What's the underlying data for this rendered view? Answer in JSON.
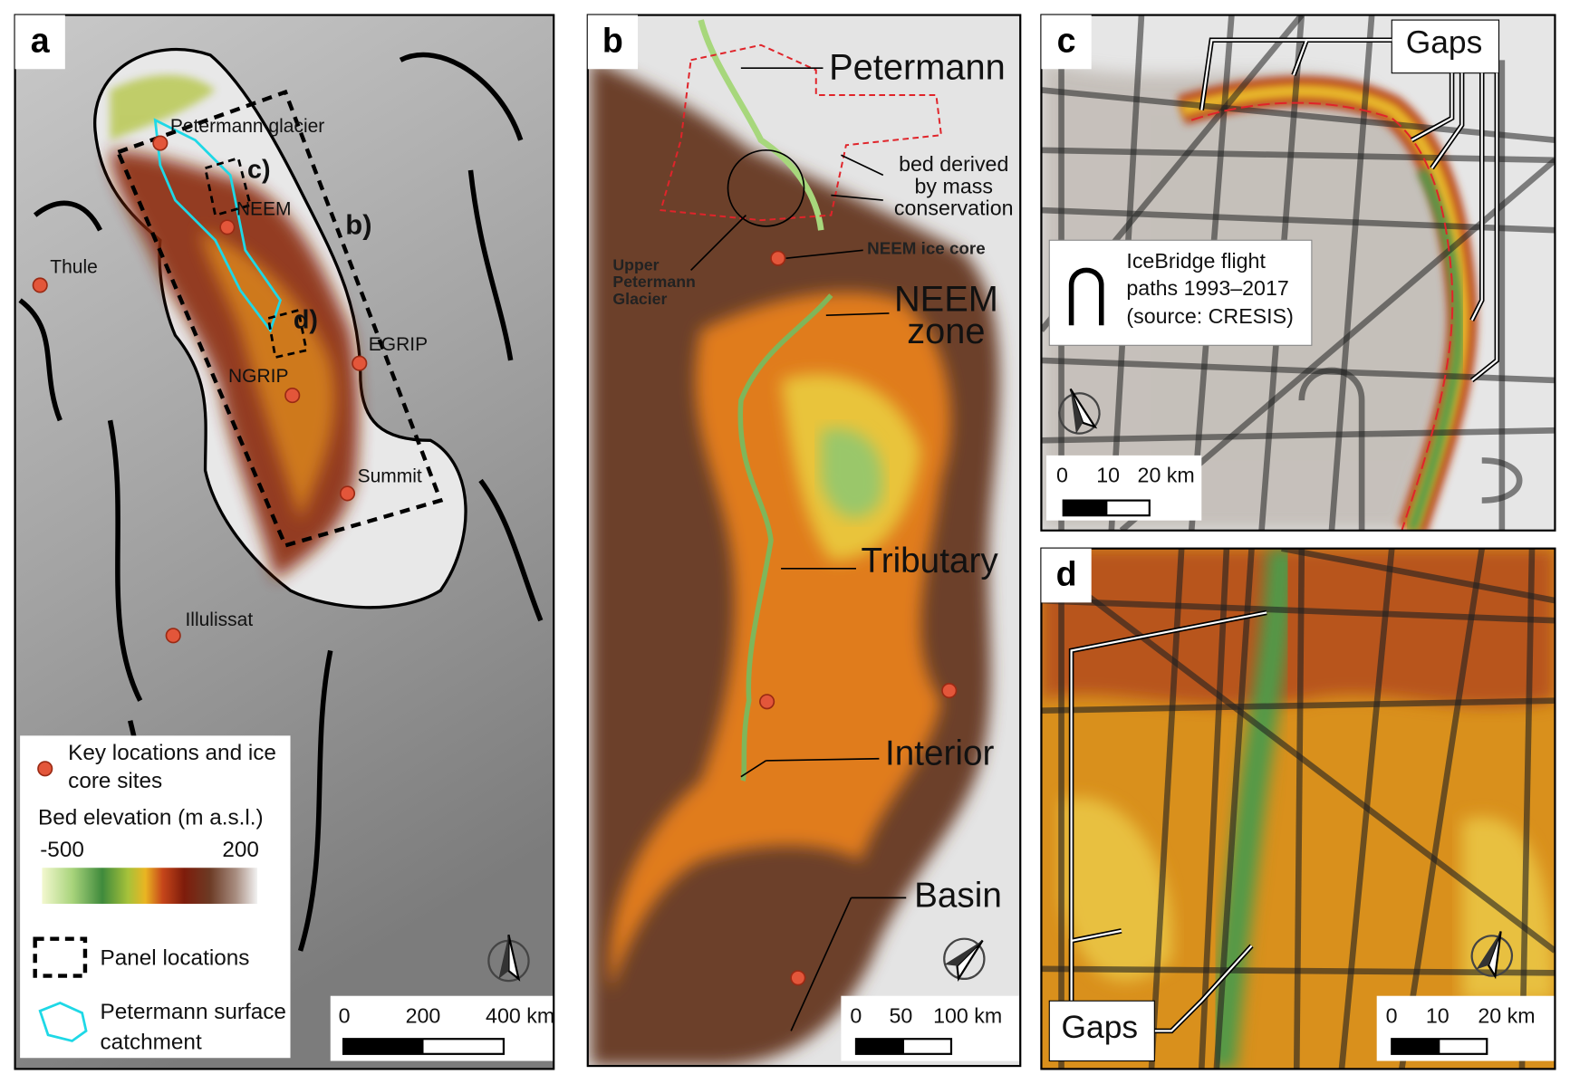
{
  "panels": [
    {
      "letter": "a",
      "labels": [
        "Petermann glacier",
        "c)",
        "NEEM",
        "b)",
        "Thule",
        "d)",
        "EGRIP",
        "NGRIP",
        "Summit",
        "Illulissat"
      ],
      "legend": {
        "locations": "Key locations and ice core sites",
        "bed_title": "Bed elevation (m a.s.l.)",
        "bed_min": -500,
        "bed_max": 200,
        "boxes": "Panel locations",
        "catchment": "Petermann surface catchment"
      },
      "scale": [
        0,
        200,
        "400 km"
      ]
    },
    {
      "letter": "b",
      "labels": [
        "Petermann",
        "bed derived by mass conservation",
        "Upper Petermann Glacier",
        "NEEM ice core",
        "NEEM zone",
        "Tributary",
        "Interior",
        "Basin"
      ],
      "scale": [
        0,
        50,
        "100 km"
      ]
    },
    {
      "letter": "c",
      "labels": [
        "Gaps"
      ],
      "legend": {
        "flights": "IceBridge flight paths 1993–2017 (source: CRESIS)"
      },
      "scale": [
        0,
        10,
        "20 km"
      ]
    },
    {
      "letter": "d",
      "labels": [
        "Gaps"
      ],
      "scale": [
        0,
        10,
        "20 km"
      ]
    }
  ]
}
